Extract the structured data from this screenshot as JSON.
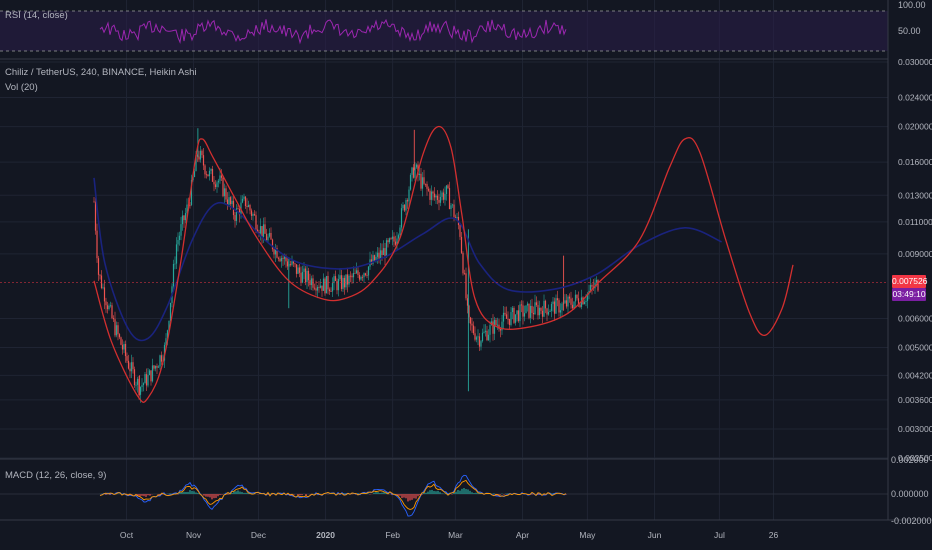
{
  "rsi_panel": {
    "label": "RSI (14, close)",
    "levels": [
      100,
      50
    ],
    "tick_labels": [
      "100.00",
      "50.00"
    ]
  },
  "price_panel": {
    "title": "Chiliz / TetherUS, 240, BINANCE, Heikin Ashi",
    "vol_label": "Vol (20)",
    "last_price": "0.007526",
    "countdown": "03:49:10",
    "price_ticks": [
      "0.030000",
      "0.024000",
      "0.020000",
      "0.016000",
      "0.013000",
      "0.011000",
      "0.009000",
      "0.006000",
      "0.005000",
      "0.004200",
      "0.003600",
      "0.003000",
      "0.002500"
    ]
  },
  "macd_panel": {
    "label": "MACD (12, 26, close, 9)",
    "tick_labels": [
      "0.002000",
      "0.000000",
      "-0.002000"
    ]
  },
  "time_axis": [
    "Oct",
    "Nov",
    "Dec",
    "2020",
    "Feb",
    "Mar",
    "Apr",
    "May",
    "Jun",
    "Jul",
    "26"
  ],
  "colors": {
    "background": "#131722",
    "up": "#26a69a",
    "down": "#ef5350",
    "rsi": "#9c27b0",
    "red_curve": "#d32f2f",
    "blue_curve": "#1a237e",
    "last_price_badge": "#f23645",
    "countdown_badge": "#7b1fa2"
  },
  "chart_data": {
    "type": "candlestick",
    "title": "Chiliz / TetherUS, 240, BINANCE, Heikin Ashi",
    "y_scale": "log",
    "ylim": [
      0.0025,
      0.03
    ],
    "x_range": [
      "2019-09-16",
      "2020-08-04"
    ],
    "price_path": [
      [
        "2019-09-16",
        0.0125
      ],
      [
        "2019-09-18",
        0.008
      ],
      [
        "2019-09-25",
        0.0058
      ],
      [
        "2019-10-02",
        0.0045
      ],
      [
        "2019-10-07",
        0.0039
      ],
      [
        "2019-10-12",
        0.0042
      ],
      [
        "2019-10-19",
        0.005
      ],
      [
        "2019-10-24",
        0.0095
      ],
      [
        "2019-10-30",
        0.0125
      ],
      [
        "2019-11-03",
        0.017
      ],
      [
        "2019-11-08",
        0.0148
      ],
      [
        "2019-11-13",
        0.0142
      ],
      [
        "2019-11-20",
        0.0115
      ],
      [
        "2019-11-25",
        0.0125
      ],
      [
        "2019-12-02",
        0.0105
      ],
      [
        "2019-12-12",
        0.0088
      ],
      [
        "2019-12-22",
        0.0078
      ],
      [
        "2019-12-31",
        0.0074
      ],
      [
        "2020-01-10",
        0.0075
      ],
      [
        "2020-01-20",
        0.0082
      ],
      [
        "2020-02-02",
        0.0098
      ],
      [
        "2020-02-11",
        0.0155
      ],
      [
        "2020-02-15",
        0.0138
      ],
      [
        "2020-02-20",
        0.0128
      ],
      [
        "2020-02-26",
        0.0132
      ],
      [
        "2020-03-03",
        0.0105
      ],
      [
        "2020-03-07",
        0.0058
      ],
      [
        "2020-03-12",
        0.0053
      ],
      [
        "2020-03-20",
        0.0058
      ],
      [
        "2020-03-30",
        0.0062
      ],
      [
        "2020-04-10",
        0.0064
      ],
      [
        "2020-04-20",
        0.0065
      ],
      [
        "2020-04-30",
        0.0069
      ],
      [
        "2020-05-06",
        0.0075
      ]
    ],
    "spikes": [
      {
        "date": "2019-11-03",
        "high": 0.0198,
        "low": 0.0165
      },
      {
        "date": "2020-02-11",
        "high": 0.0196,
        "low": 0.0152
      },
      {
        "date": "2020-03-07",
        "high": 0.0105,
        "low": 0.0038
      },
      {
        "date": "2020-04-20",
        "high": 0.0089,
        "low": 0.0063
      },
      {
        "date": "2019-12-15",
        "high": 0.0088,
        "low": 0.0064
      },
      {
        "date": "2019-10-07",
        "high": 0.0042,
        "low": 0.0037
      }
    ],
    "red_curve": [
      [
        "2019-09-16",
        0.0076
      ],
      [
        "2019-09-24",
        0.0052
      ],
      [
        "2019-10-06",
        0.0037
      ],
      [
        "2019-10-11",
        0.00365
      ],
      [
        "2019-10-18",
        0.0046
      ],
      [
        "2019-10-26",
        0.0085
      ],
      [
        "2019-11-02",
        0.0165
      ],
      [
        "2019-11-05",
        0.0185
      ],
      [
        "2019-11-10",
        0.0165
      ],
      [
        "2019-11-20",
        0.0128
      ],
      [
        "2019-12-01",
        0.0098
      ],
      [
        "2019-12-15",
        0.0076
      ],
      [
        "2019-12-30",
        0.0068
      ],
      [
        "2020-01-10",
        0.0068
      ],
      [
        "2020-01-22",
        0.0075
      ],
      [
        "2020-02-04",
        0.0098
      ],
      [
        "2020-02-15",
        0.0168
      ],
      [
        "2020-02-22",
        0.02
      ],
      [
        "2020-02-28",
        0.0175
      ],
      [
        "2020-03-04",
        0.0115
      ],
      [
        "2020-03-10",
        0.0068
      ],
      [
        "2020-03-20",
        0.0057
      ],
      [
        "2020-04-05",
        0.0057
      ],
      [
        "2020-04-22",
        0.0062
      ],
      [
        "2020-05-06",
        0.0075
      ],
      [
        "2020-05-25",
        0.0098
      ],
      [
        "2020-06-08",
        0.0155
      ],
      [
        "2020-06-15",
        0.0185
      ],
      [
        "2020-06-22",
        0.017
      ],
      [
        "2020-07-04",
        0.0098
      ],
      [
        "2020-07-15",
        0.0062
      ],
      [
        "2020-07-22",
        0.0054
      ],
      [
        "2020-07-30",
        0.0064
      ],
      [
        "2020-08-04",
        0.0084
      ]
    ],
    "blue_curve": [
      [
        "2019-09-16",
        0.0145
      ],
      [
        "2019-09-21",
        0.0085
      ],
      [
        "2019-10-02",
        0.0056
      ],
      [
        "2019-10-11",
        0.0053
      ],
      [
        "2019-10-20",
        0.0065
      ],
      [
        "2019-10-31",
        0.0097
      ],
      [
        "2019-11-10",
        0.0122
      ],
      [
        "2019-11-20",
        0.0119
      ],
      [
        "2019-12-05",
        0.0097
      ],
      [
        "2019-12-20",
        0.0085
      ],
      [
        "2020-01-10",
        0.0082
      ],
      [
        "2020-01-28",
        0.0088
      ],
      [
        "2020-02-15",
        0.0102
      ],
      [
        "2020-03-01",
        0.0112
      ],
      [
        "2020-03-12",
        0.0085
      ],
      [
        "2020-03-25",
        0.0072
      ],
      [
        "2020-04-15",
        0.0072
      ],
      [
        "2020-05-05",
        0.0079
      ],
      [
        "2020-05-25",
        0.0095
      ],
      [
        "2020-06-15",
        0.0106
      ],
      [
        "2020-07-02",
        0.0097
      ]
    ]
  }
}
